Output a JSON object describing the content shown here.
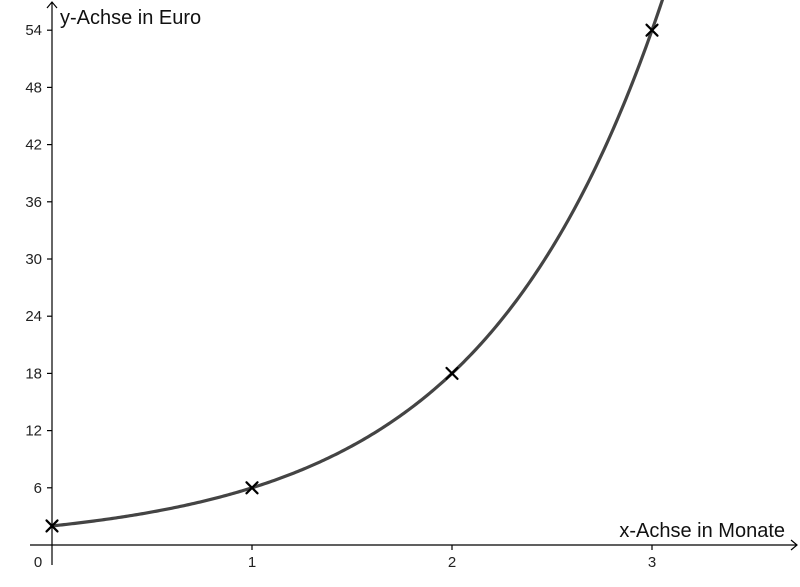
{
  "chart_data": {
    "type": "line",
    "xlabel": "x-Achse in Monate",
    "ylabel": "y-Achse in Euro",
    "origin_label": "0",
    "xlim": [
      0,
      3.75
    ],
    "ylim": [
      -3.5,
      57
    ],
    "x_ticks": [
      1,
      2,
      3
    ],
    "y_ticks": [
      6,
      12,
      18,
      24,
      30,
      36,
      42,
      48,
      54
    ],
    "function": {
      "form": "a*b^x",
      "a": 2,
      "b": 3
    },
    "points": [
      {
        "x": 0,
        "y": 2
      },
      {
        "x": 1,
        "y": 6
      },
      {
        "x": 2,
        "y": 18
      },
      {
        "x": 3,
        "y": 54
      }
    ],
    "grid": false,
    "colors": {
      "curve": "#444444",
      "axes": "#000000",
      "points": "#000000"
    }
  }
}
